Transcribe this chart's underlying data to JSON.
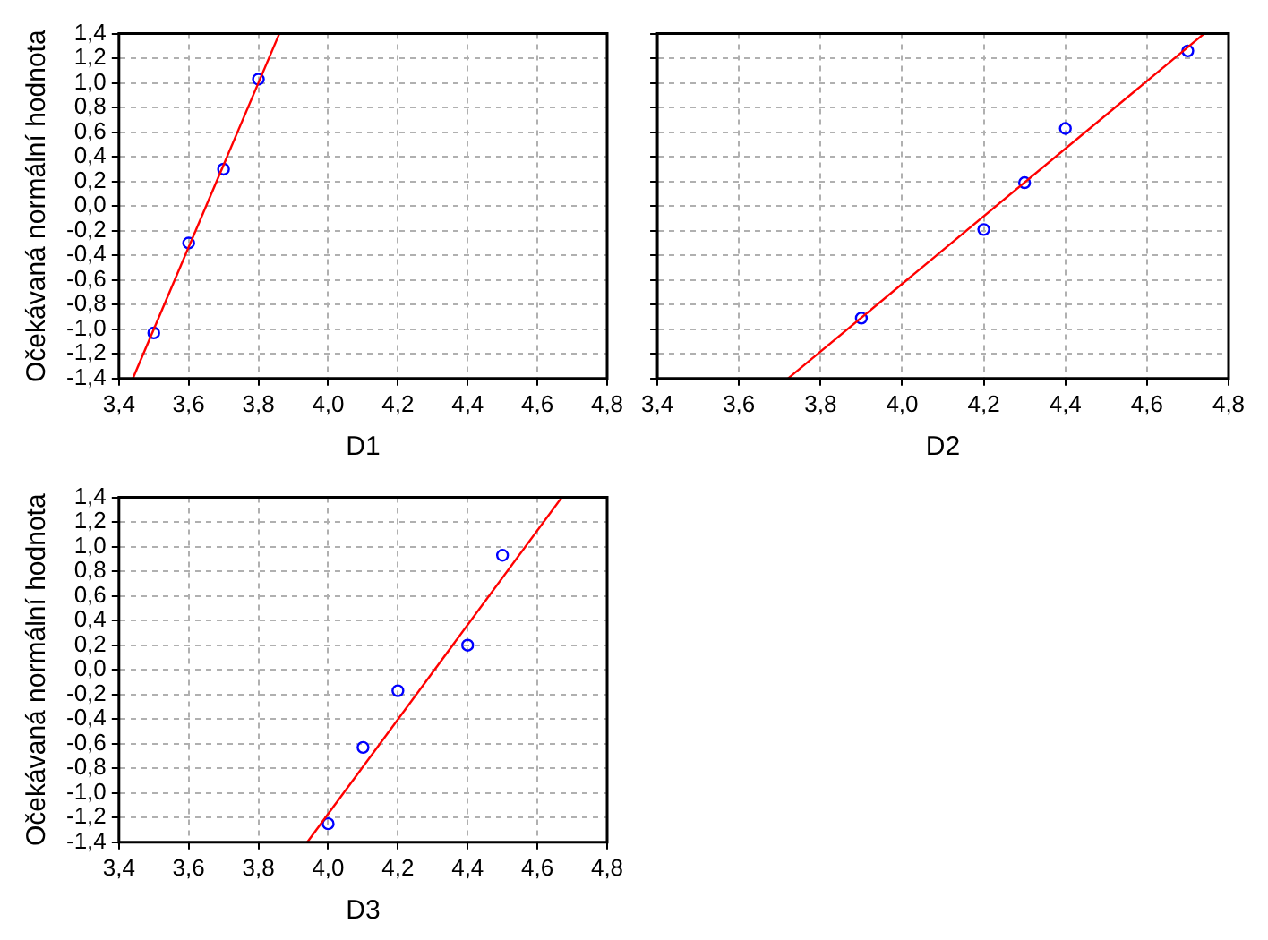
{
  "chart_data": [
    {
      "type": "scatter",
      "xlabel": "D1",
      "ylabel": "Očekávaná normální hodnota",
      "grid": true,
      "legend": false,
      "xlim": [
        3.4,
        4.8
      ],
      "xticks": [
        {
          "value": 3.4,
          "label": "3,4"
        },
        {
          "value": 3.6,
          "label": "3,6"
        },
        {
          "value": 3.8,
          "label": "3,8"
        },
        {
          "value": 4.0,
          "label": "4,0"
        },
        {
          "value": 4.2,
          "label": "4,2"
        },
        {
          "value": 4.4,
          "label": "4,4"
        },
        {
          "value": 4.6,
          "label": "4,6"
        },
        {
          "value": 4.8,
          "label": "4,8"
        }
      ],
      "ylim": [
        -1.4,
        1.4
      ],
      "yticks": [
        {
          "value": -1.4,
          "label": "-1,4"
        },
        {
          "value": -1.2,
          "label": "-1,2"
        },
        {
          "value": -1.0,
          "label": "-1,0"
        },
        {
          "value": -0.8,
          "label": "-0,8"
        },
        {
          "value": -0.6,
          "label": "-0,6"
        },
        {
          "value": -0.4,
          "label": "-0,4"
        },
        {
          "value": -0.2,
          "label": "-0,2"
        },
        {
          "value": 0,
          "label": "0,0"
        },
        {
          "value": 0.2,
          "label": "0,2"
        },
        {
          "value": 0.4,
          "label": "0,4"
        },
        {
          "value": 0.6,
          "label": "0,6"
        },
        {
          "value": 0.8,
          "label": "0,8"
        },
        {
          "value": 1.0,
          "label": "1,0"
        },
        {
          "value": 1.2,
          "label": "1,2"
        },
        {
          "value": 1.4,
          "label": "1,4"
        }
      ],
      "series": [
        {
          "type": "scatter",
          "color": "#0000ff",
          "marker": "circle",
          "x": [
            3.5,
            3.6,
            3.7,
            3.8
          ],
          "values": [
            -1.03,
            -0.3,
            0.3,
            1.03
          ]
        },
        {
          "type": "line",
          "color": "#ff0000",
          "marker": "none",
          "line_style": "solid",
          "x": [
            3.44,
            3.86
          ],
          "values": [
            -1.4,
            1.4
          ]
        }
      ]
    },
    {
      "type": "scatter",
      "xlabel": "D2",
      "grid": true,
      "legend": false,
      "tick_labels": "x",
      "xlim": [
        3.4,
        4.8
      ],
      "xticks": [
        {
          "value": 3.4,
          "label": "3,4"
        },
        {
          "value": 3.6,
          "label": "3,6"
        },
        {
          "value": 3.8,
          "label": "3,8"
        },
        {
          "value": 4.0,
          "label": "4,0"
        },
        {
          "value": 4.2,
          "label": "4,2"
        },
        {
          "value": 4.4,
          "label": "4,4"
        },
        {
          "value": 4.6,
          "label": "4,6"
        },
        {
          "value": 4.8,
          "label": "4,8"
        }
      ],
      "ylim": [
        -1.4,
        1.4
      ],
      "yticks": [
        {
          "value": -1.4,
          "label": null
        },
        {
          "value": -1.2,
          "label": null
        },
        {
          "value": -1.0,
          "label": null
        },
        {
          "value": -0.8,
          "label": null
        },
        {
          "value": -0.6,
          "label": null
        },
        {
          "value": -0.4,
          "label": null
        },
        {
          "value": -0.2,
          "label": null
        },
        {
          "value": 0,
          "label": null
        },
        {
          "value": 0.2,
          "label": null
        },
        {
          "value": 0.4,
          "label": null
        },
        {
          "value": 0.6,
          "label": null
        },
        {
          "value": 0.8,
          "label": null
        },
        {
          "value": 1.0,
          "label": null
        },
        {
          "value": 1.2,
          "label": null
        },
        {
          "value": 1.4,
          "label": null
        }
      ],
      "series": [
        {
          "color": "#0000ff",
          "marker": "circle",
          "x": [
            3.9,
            4.2,
            4.3,
            4.4,
            4.7
          ],
          "values": [
            -0.91,
            -0.19,
            0.19,
            0.63,
            1.26
          ]
        },
        {
          "type": "line",
          "color": "#ff0000",
          "marker": "none",
          "line_style": "solid",
          "x": [
            3.72,
            4.74
          ],
          "values": [
            -1.4,
            1.4
          ]
        }
      ]
    },
    {
      "type": "scatter",
      "xlabel": "D3",
      "ylabel": "Očekávaná normální hodnota",
      "grid": true,
      "legend": false,
      "xlim": [
        3.4,
        4.8
      ],
      "xticks": [
        {
          "value": 3.4,
          "label": "3,4"
        },
        {
          "value": 3.6,
          "label": "3,6"
        },
        {
          "value": 3.8,
          "label": "3,8"
        },
        {
          "value": 4.0,
          "label": "4,0"
        },
        {
          "value": 4.2,
          "label": "4,2"
        },
        {
          "value": 4.4,
          "label": "4,4"
        },
        {
          "value": 4.6,
          "label": "4,6"
        },
        {
          "value": 4.8,
          "label": "4,8"
        }
      ],
      "ylim": [
        -1.4,
        1.4
      ],
      "yticks": [
        {
          "value": -1.4,
          "label": "-1,4"
        },
        {
          "value": -1.2,
          "label": "-1,2"
        },
        {
          "value": -1.0,
          "label": "-1,0"
        },
        {
          "value": -0.8,
          "label": "-0,8"
        },
        {
          "value": -0.6,
          "label": "-0,6"
        },
        {
          "value": -0.4,
          "label": "-0,4"
        },
        {
          "value": -0.2,
          "label": "-0,2"
        },
        {
          "value": 0,
          "label": "0,0"
        },
        {
          "value": 0.2,
          "label": "0,2"
        },
        {
          "value": 0.4,
          "label": "0,4"
        },
        {
          "value": 0.6,
          "label": "0,6"
        },
        {
          "value": 0.8,
          "label": "0,8"
        },
        {
          "value": 1.0,
          "label": "1,0"
        },
        {
          "value": 1.2,
          "label": "1,2"
        },
        {
          "value": 1.4,
          "label": "1,4"
        }
      ],
      "series": [
        {
          "type": "scatter",
          "color": "#0000ff",
          "marker": "circle",
          "x": [
            4.0,
            4.1,
            4.2,
            4.4,
            4.5
          ],
          "values": [
            -1.25,
            -0.63,
            -0.17,
            0.2,
            0.93
          ]
        },
        {
          "type": "line",
          "color": "#ff0000",
          "marker": "none",
          "line_style": "solid",
          "x": [
            3.94,
            4.67
          ],
          "values": [
            -1.4,
            1.4
          ]
        }
      ]
    }
  ]
}
